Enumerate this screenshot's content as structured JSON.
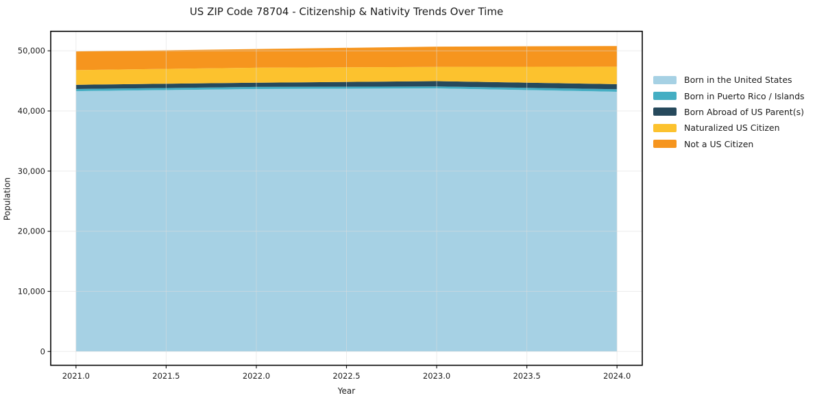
{
  "figure": {
    "title": "US ZIP Code 78704 - Citizenship & Nativity Trends Over Time",
    "xlabel": "Year",
    "ylabel": "Population",
    "background_color": "#ffffff",
    "spine_color": "#000000",
    "grid_color": "#dcdcdc",
    "text_color": "#1a1a1a"
  },
  "chart_data": {
    "type": "area",
    "stacked": true,
    "title": "US ZIP Code 78704 - Citizenship & Nativity Trends Over Time",
    "xlabel": "Year",
    "ylabel": "Population",
    "x": [
      2021,
      2022,
      2023,
      2024
    ],
    "series": [
      {
        "name": "Born in the United States",
        "color": "#A6D1E4",
        "values": [
          43300,
          43650,
          43750,
          43200
        ]
      },
      {
        "name": "Born in Puerto Rico / Islands",
        "color": "#44AEC3",
        "values": [
          350,
          350,
          330,
          420
        ]
      },
      {
        "name": "Born Abroad of US Parent(s)",
        "color": "#26495C",
        "values": [
          700,
          700,
          880,
          840
        ]
      },
      {
        "name": "Naturalized US Citizen",
        "color": "#FCC22E",
        "values": [
          2450,
          2500,
          2370,
          2900
        ]
      },
      {
        "name": "Not a US Citizen",
        "color": "#F6951E",
        "values": [
          3100,
          3100,
          3370,
          3440
        ]
      }
    ],
    "stack_totals": [
      49900,
      50300,
      50700,
      50800
    ],
    "xlim": [
      2020.86,
      2024.14
    ],
    "ylim": [
      -2300,
      53250
    ],
    "xticks": {
      "values": [
        2021.0,
        2021.5,
        2022.0,
        2022.5,
        2023.0,
        2023.5,
        2024.0
      ],
      "labels": [
        "2021.0",
        "2021.5",
        "2022.0",
        "2022.5",
        "2023.0",
        "2023.5",
        "2024.0"
      ]
    },
    "yticks": {
      "values": [
        0,
        10000,
        20000,
        30000,
        40000,
        50000
      ],
      "labels": [
        "0",
        "10,000",
        "20,000",
        "30,000",
        "40,000",
        "50,000"
      ]
    },
    "grid": true,
    "legend_position": "right"
  }
}
